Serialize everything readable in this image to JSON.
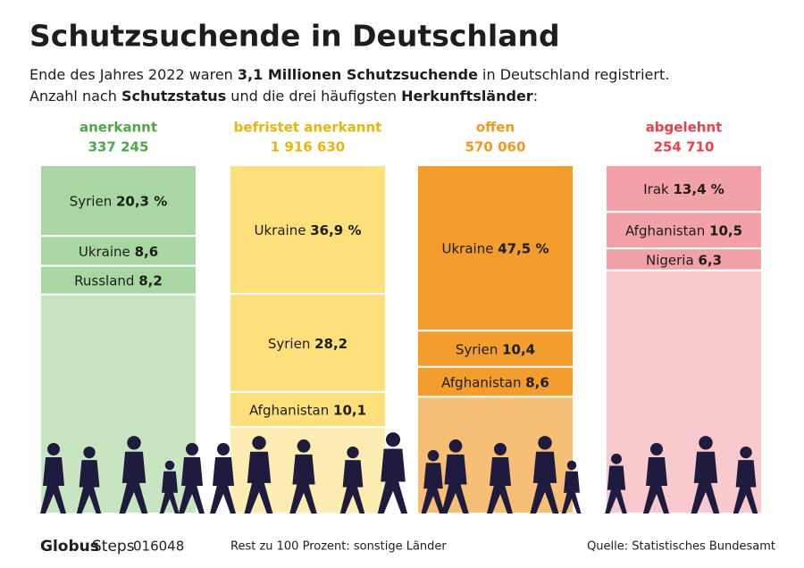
{
  "chart_data": {
    "type": "stacked-column",
    "title": "Schutzsuchende in Deutschland",
    "subtitle": [
      [
        "Ende des Jahres 2022 waren ",
        "3,1 Millionen Schutzsuchende",
        " in Deutschland registriert."
      ],
      [
        "Anzahl nach ",
        "Schutzstatus",
        " und die drei häufigsten ",
        "Herkunftsländer",
        ":"
      ]
    ],
    "ylim": [
      0,
      100
    ],
    "columns": [
      {
        "name": "anerkannt",
        "total": 337245,
        "total_label": "337 245",
        "title_color": "#4ea84a",
        "color": "#a9d7a3",
        "rest_color": "#c8e5c2",
        "segments": [
          {
            "name": "Syrien",
            "value": 20.3,
            "label": "20,3 %"
          },
          {
            "name": "Ukraine",
            "value": 8.6,
            "label": "8,6"
          },
          {
            "name": "Russland",
            "value": 8.2,
            "label": "8,2"
          }
        ]
      },
      {
        "name": "befristet anerkannt",
        "total": 1916630,
        "total_label": "1 916 630",
        "title_color": "#e9b50f",
        "color": "#fde07c",
        "rest_color": "#feedb2",
        "segments": [
          {
            "name": "Ukraine",
            "value": 36.9,
            "label": "36,9 %"
          },
          {
            "name": "Syrien",
            "value": 28.2,
            "label": "28,2"
          },
          {
            "name": "Afghanistan",
            "value": 10.1,
            "label": "10,1"
          }
        ]
      },
      {
        "name": "offen",
        "total": 570060,
        "total_label": "570 060",
        "title_color": "#ee9a22",
        "color": "#f39d2e",
        "rest_color": "#f7be75",
        "segments": [
          {
            "name": "Ukraine",
            "value": 47.5,
            "label": "47,5 %"
          },
          {
            "name": "Syrien",
            "value": 10.4,
            "label": "10,4"
          },
          {
            "name": "Afghanistan",
            "value": 8.6,
            "label": "8,6"
          }
        ]
      },
      {
        "name": "abgelehnt",
        "total": 254710,
        "total_label": "254 710",
        "title_color": "#e5424d",
        "color": "#f1a1a7",
        "rest_color": "#f8cacd",
        "segments": [
          {
            "name": "Irak",
            "value": 13.4,
            "label": "13,4 %"
          },
          {
            "name": "Afghanistan",
            "value": 10.5,
            "label": "10,5"
          },
          {
            "name": "Nigeria",
            "value": 6.3,
            "label": "6,3"
          }
        ]
      }
    ],
    "footer": {
      "brand": "Globus",
      "brand_sub": "Steps",
      "number": "016048",
      "note": "Rest zu 100 Prozent: sonstige Länder",
      "source": "Quelle: Statistisches Bundesamt"
    }
  }
}
